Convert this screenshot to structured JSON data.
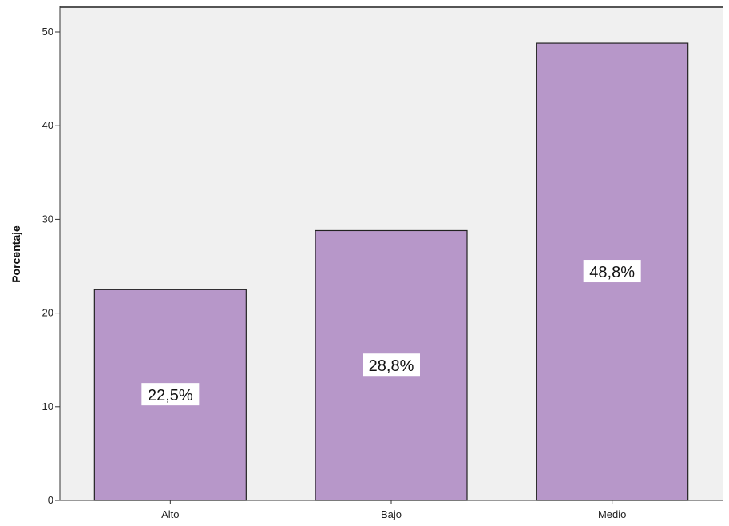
{
  "chart_data": {
    "type": "bar",
    "categories": [
      "Alto",
      "Bajo",
      "Medio"
    ],
    "values": [
      22.5,
      28.8,
      48.8
    ],
    "data_labels": [
      "22,5%",
      "28,8%",
      "48,8%"
    ],
    "title": "",
    "xlabel": "",
    "ylabel": "Porcentaje",
    "ylim": [
      0,
      52
    ],
    "yticks": [
      0,
      10,
      20,
      30,
      40,
      50
    ],
    "bar_color": "#b797c9",
    "plot_background": "#f0f0f0",
    "grid": false,
    "legend": "none"
  }
}
